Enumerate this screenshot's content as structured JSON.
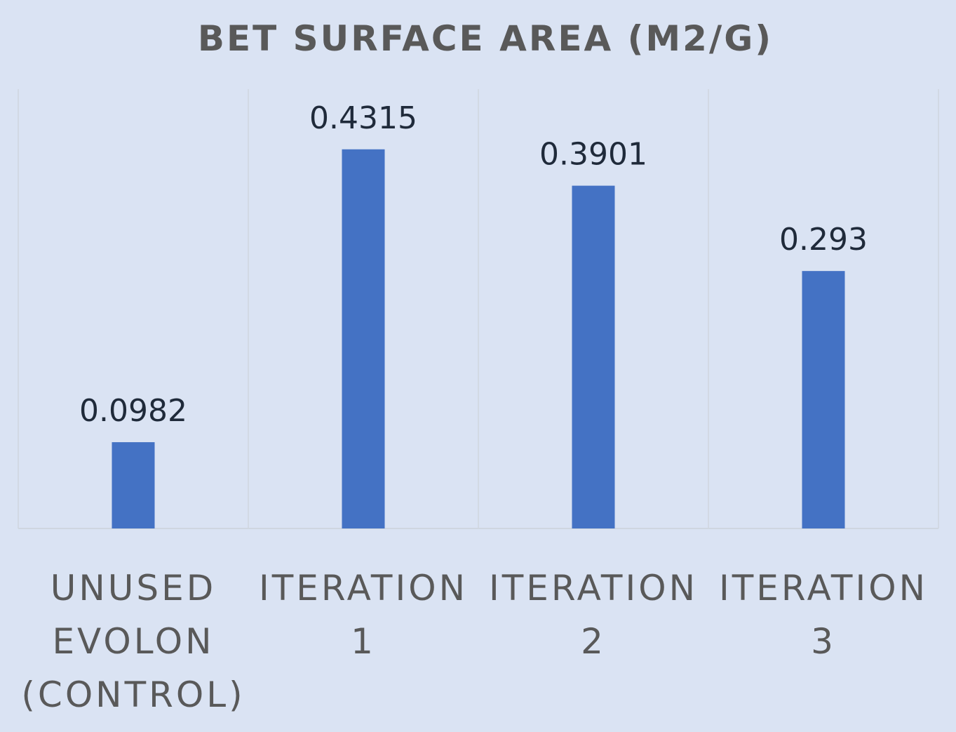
{
  "chart_data": {
    "type": "bar",
    "title": "BET SURFACE AREA (M2/G)",
    "categories": [
      [
        "UNUSED",
        "EVOLON",
        "(CONTROL)"
      ],
      [
        "ITERATION",
        "1"
      ],
      [
        "ITERATION",
        "2"
      ],
      [
        "ITERATION",
        "3"
      ]
    ],
    "values": [
      0.0982,
      0.4315,
      0.3901,
      0.293
    ],
    "value_labels": [
      "0.0982",
      "0.4315",
      "0.3901",
      "0.293"
    ],
    "ylim": [
      0,
      0.5
    ],
    "bar_color": "#4472c4",
    "background_color": "#dae3f3",
    "gridlines": "vertical category separators",
    "legend": "none"
  }
}
